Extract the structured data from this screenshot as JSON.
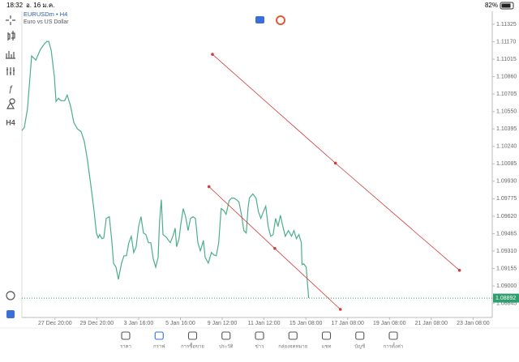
{
  "status_bar": {
    "time": "18:32",
    "date": "อ. 16 ม.ค.",
    "battery": "82%"
  },
  "symbol": {
    "name": "EURUSDm • H4",
    "description": "Euro vs US Dollar"
  },
  "toolbar": {
    "timeframe": "H4"
  },
  "chart_data": {
    "type": "line",
    "color": "#4caf8a",
    "x": [
      0.5,
      1.2,
      2.1,
      3.3,
      4.5,
      5.8,
      7.0,
      7.7,
      8.2,
      8.9,
      9.8,
      10.3,
      11.0,
      11.7,
      12.8,
      13.5,
      14.5,
      15.4,
      16.5,
      17.5,
      18.4,
      19.3,
      20.3,
      21.2,
      21.9,
      22.4,
      22.8,
      23.5,
      24.0,
      24.7,
      25.6,
      26.3,
      26.8,
      27.5,
      28.2,
      29.1,
      29.8,
      30.5,
      31.2,
      31.9,
      32.6,
      33.3,
      34.0,
      34.7,
      35.4,
      36.1,
      36.8,
      37.5,
      38.2,
      38.9,
      39.6,
      40.0,
      40.5,
      41.0,
      41.9,
      43.1,
      44.0,
      44.5,
      44.9,
      45.6,
      46.1,
      46.8,
      47.5,
      48.2,
      48.9,
      49.6,
      50.3,
      51.0,
      51.7,
      52.1,
      52.6,
      53.1,
      54.0,
      54.9,
      55.6,
      56.3,
      57.0,
      57.7,
      58.4,
      59.1,
      60.0,
      60.7,
      61.4,
      62.1,
      62.8,
      63.5,
      64.2,
      64.9,
      65.4,
      65.8,
      66.8,
      67.7,
      68.4,
      69.1,
      69.8,
      70.5,
      71.2,
      71.9,
      72.6,
      73.3,
      74.0,
      74.7,
      75.4,
      76.1,
      77.0,
      77.9,
      78.6,
      79.3,
      80.0,
      80.7,
      80.9,
      81.4,
      82.1,
      82.8
    ],
    "values": [
      1.1038,
      1.10408,
      1.10574,
      1.11043,
      1.11007,
      1.11101,
      1.11152,
      1.11173,
      1.11173,
      1.11094,
      1.10863,
      1.10639,
      1.10668,
      1.10646,
      1.10646,
      1.10697,
      1.10596,
      1.10452,
      1.10394,
      1.10372,
      1.10286,
      1.1012,
      1.09889,
      1.09672,
      1.0947,
      1.09427,
      1.09456,
      1.0942,
      1.09427,
      1.096,
      1.09615,
      1.09405,
      1.09203,
      1.09167,
      1.09059,
      1.09203,
      1.09268,
      1.09268,
      1.09384,
      1.09442,
      1.09297,
      1.09348,
      1.09528,
      1.09615,
      1.0947,
      1.09456,
      1.09384,
      1.09384,
      1.0924,
      1.09167,
      1.09254,
      1.09564,
      1.09766,
      1.09456,
      1.09434,
      1.09384,
      1.09456,
      1.09514,
      1.09348,
      1.0942,
      1.09543,
      1.09687,
      1.09615,
      1.09492,
      1.096,
      1.09615,
      1.096,
      1.09384,
      1.09312,
      1.09348,
      1.09405,
      1.09254,
      1.09203,
      1.09297,
      1.09276,
      1.09268,
      1.09384,
      1.09687,
      1.09672,
      1.09636,
      1.09759,
      1.09781,
      1.09781,
      1.09766,
      1.09745,
      1.09636,
      1.09492,
      1.0947,
      1.09687,
      1.09781,
      1.09817,
      1.09781,
      1.09658,
      1.096,
      1.09658,
      1.09709,
      1.09528,
      1.09442,
      1.09456,
      1.096,
      1.09528,
      1.09629,
      1.09528,
      1.09442,
      1.09492,
      1.09442,
      1.09492,
      1.0942,
      1.09456,
      1.09384,
      1.09189,
      1.09196,
      1.09167,
      1.08892
    ],
    "current_price": 1.08892,
    "current_price_color": "#2e9e6e",
    "trend_lines": [
      {
        "color": "#d23b3b",
        "x": [
          55.2,
          90.5,
          126.1
        ],
        "values": [
          1.11058,
          1.10091,
          1.09139
        ]
      },
      {
        "color": "#d23b3b",
        "x": [
          54.2,
          73.1,
          91.9
        ],
        "values": [
          1.09882,
          1.09333,
          1.08792
        ]
      }
    ],
    "xlim": [
      0.5,
      135.5
    ],
    "ylim": [
      1.0872,
      1.1144
    ],
    "xticks": [
      {
        "value": 10,
        "label": "27 Dec 20:00"
      },
      {
        "value": 22,
        "label": "29 Dec 20:00"
      },
      {
        "value": 34,
        "label": "3 Jan 16:00"
      },
      {
        "value": 46,
        "label": "5 Jan 16:00"
      },
      {
        "value": 58,
        "label": "9 Jan 12:00"
      },
      {
        "value": 70,
        "label": "11 Jan 12:00"
      },
      {
        "value": 82,
        "label": "15 Jan 08:00"
      },
      {
        "value": 94,
        "label": "17 Jan 08:00"
      },
      {
        "value": 106,
        "label": "19 Jan 08:00"
      },
      {
        "value": 118,
        "label": "21 Jan 08:00"
      },
      {
        "value": 130,
        "label": "23 Jan 08:00"
      }
    ],
    "yticks": [
      1.11325,
      {
        "value": 1.1117,
        "label": "1.11170"
      },
      1.11015,
      {
        "value": 1.1086,
        "label": "1.10860"
      },
      1.10705,
      {
        "value": 1.1055,
        "label": "1.10550"
      },
      1.10395,
      {
        "value": 1.1024,
        "label": "1.10240"
      },
      1.10085,
      {
        "value": 1.0993,
        "label": "1.09930"
      },
      1.09775,
      {
        "value": 1.0962,
        "label": "1.09620"
      },
      1.09465,
      {
        "value": 1.0931,
        "label": "1.09310"
      },
      1.09155,
      {
        "value": 1.09,
        "label": "1.09000"
      },
      1.08845
    ]
  },
  "nav": {
    "items": [
      "ราคา",
      "กราฟ",
      "การซื้อขาย",
      "ประวัติ",
      "ข่าว",
      "กล่องจดหมาย",
      "แชท",
      "บัญชี",
      "การตั้งค่า"
    ],
    "active": 1
  }
}
